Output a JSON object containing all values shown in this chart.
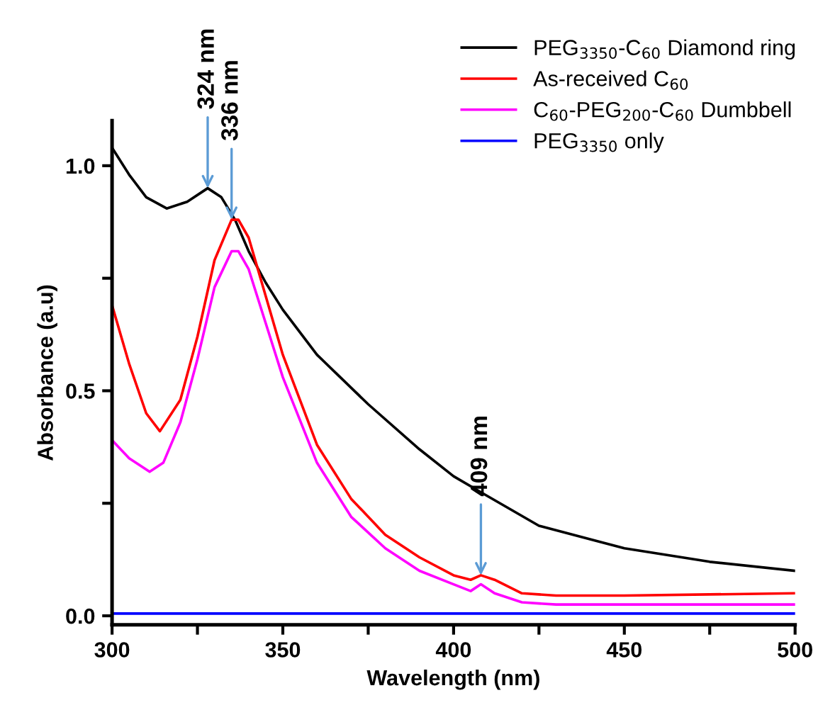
{
  "chart_data": {
    "type": "line",
    "xlabel": "Wavelength (nm)",
    "ylabel": "Absorbance (a.u)",
    "xlim": [
      300,
      500
    ],
    "ylim": [
      -0.02,
      1.1
    ],
    "xticks": [
      300,
      {
        "value": 325,
        "label": null
      },
      350,
      {
        "value": 375,
        "label": null
      },
      400,
      {
        "value": 425,
        "label": null
      },
      450,
      {
        "value": 475,
        "label": null
      },
      500
    ],
    "yticks": [
      {
        "value": 0,
        "label": "0.0"
      },
      {
        "value": 0.25,
        "label": null
      },
      {
        "value": 0.5,
        "label": "0.5"
      },
      {
        "value": 0.75,
        "label": null
      },
      {
        "value": 1.0,
        "label": "1.0"
      }
    ],
    "grid": false,
    "legend": "top right",
    "marker": "none",
    "line_style": "solid",
    "series": [
      {
        "name": "PEG$_{3350}$-C$_{60}$ Diamond ring",
        "color": "#000000",
        "x": [
          300,
          305,
          310,
          316,
          322,
          328,
          332,
          336,
          340,
          345,
          350,
          360,
          375,
          390,
          400,
          409,
          425,
          450,
          475,
          500
        ],
        "values": [
          1.04,
          0.98,
          0.93,
          0.905,
          0.92,
          0.95,
          0.93,
          0.88,
          0.81,
          0.74,
          0.68,
          0.58,
          0.47,
          0.37,
          0.31,
          0.27,
          0.2,
          0.15,
          0.12,
          0.1
        ]
      },
      {
        "name": "As-received C$_{60}$",
        "color": "#ff0000",
        "x": [
          300,
          305,
          310,
          314,
          320,
          325,
          330,
          335,
          337,
          340,
          345,
          350,
          360,
          370,
          380,
          390,
          400,
          405,
          408,
          412,
          420,
          430,
          450,
          500
        ],
        "values": [
          0.69,
          0.56,
          0.45,
          0.41,
          0.48,
          0.62,
          0.79,
          0.88,
          0.88,
          0.84,
          0.71,
          0.58,
          0.38,
          0.26,
          0.18,
          0.13,
          0.09,
          0.08,
          0.09,
          0.08,
          0.05,
          0.045,
          0.045,
          0.05
        ]
      },
      {
        "name": "C$_{60}$-PEG$_{200}$-C$_{60}$ Dumbbell",
        "color": "#ff00ff",
        "x": [
          300,
          305,
          311,
          315,
          320,
          325,
          330,
          335,
          337,
          340,
          345,
          350,
          360,
          370,
          380,
          390,
          400,
          405,
          408,
          412,
          420,
          430,
          450,
          500
        ],
        "values": [
          0.39,
          0.35,
          0.32,
          0.34,
          0.43,
          0.57,
          0.73,
          0.81,
          0.81,
          0.77,
          0.65,
          0.53,
          0.34,
          0.22,
          0.15,
          0.1,
          0.07,
          0.055,
          0.07,
          0.05,
          0.03,
          0.025,
          0.025,
          0.025
        ]
      },
      {
        "name": "PEG$_{3350}$ only",
        "color": "#0000ff",
        "x": [
          300,
          350,
          400,
          450,
          500
        ],
        "values": [
          0.005,
          0.005,
          0.005,
          0.005,
          0.005
        ]
      }
    ],
    "annotations": [
      {
        "text": "324 nm",
        "x": 328,
        "y": 0.95
      },
      {
        "text": "336 nm",
        "x": 335,
        "y": 0.88
      },
      {
        "text": "409 nm",
        "x": 408,
        "y": 0.09
      }
    ]
  }
}
